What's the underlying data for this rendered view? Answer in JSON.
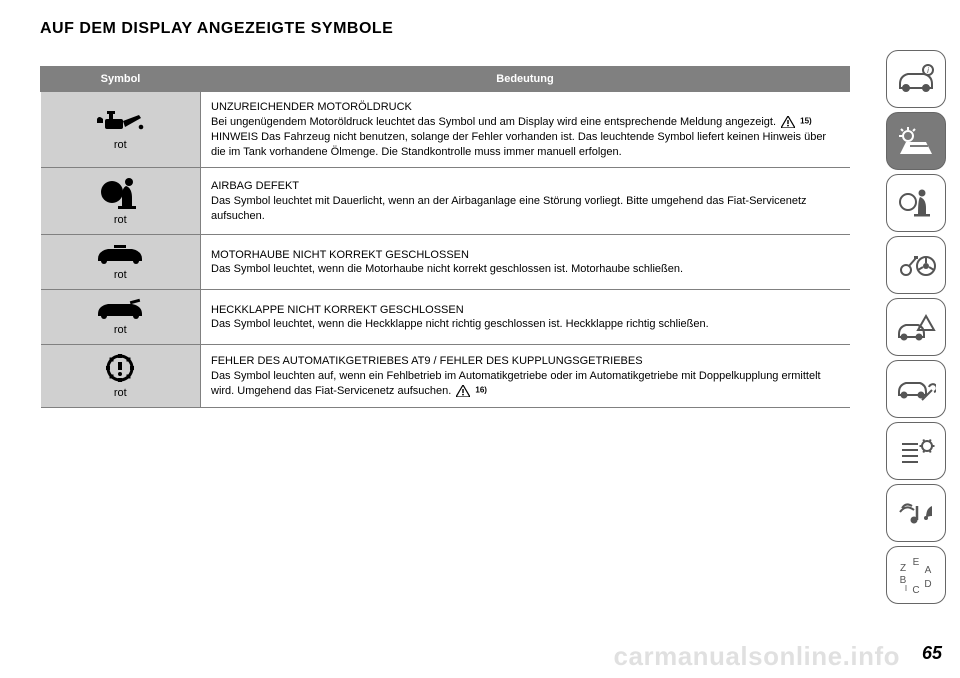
{
  "heading": "AUF DEM DISPLAY ANGEZEIGTE SYMBOLE",
  "table": {
    "header": {
      "col1": "Symbol",
      "col2": "Bedeutung"
    },
    "rows": [
      {
        "icon": "oil-can",
        "color_label": "rot",
        "body_html": "UNZUREICHENDER MOTORÖLDRUCK<br>Bei ungenügendem Motoröldruck leuchtet das Symbol und am Display wird eine entsprechende Meldung angezeigt. {warn} <span class=\"footnote\">15)</span><br>HINWEIS Das Fahrzeug nicht benutzen, solange der Fehler vorhanden ist. Das leuchtende Symbol liefert keinen Hinweis über die im Tank vorhandene Ölmenge. Die Standkontrolle muss immer manuell erfolgen."
      },
      {
        "icon": "airbag",
        "color_label": "rot",
        "body_html": "AIRBAG DEFEKT<br>Das Symbol leuchtet mit Dauerlicht, wenn an der Airbaganlage eine Störung vorliegt. Bitte umgehend das Fiat-Servicenetz aufsuchen."
      },
      {
        "icon": "car-hood",
        "color_label": "rot",
        "body_html": "MOTORHAUBE NICHT KORREKT GESCHLOSSEN<br>Das Symbol leuchtet, wenn die Motorhaube nicht korrekt geschlossen ist. Motorhaube schließen."
      },
      {
        "icon": "car-trunk",
        "color_label": "rot",
        "body_html": "HECKKLAPPE NICHT KORREKT GESCHLOSSEN<br>Das Symbol leuchtet, wenn die Heckklappe nicht richtig geschlossen ist. Heckklappe richtig schließen."
      },
      {
        "icon": "gear-warning",
        "color_label": "rot",
        "body_html": "FEHLER DES AUTOMATIKGETRIEBES AT9 / FEHLER DES KUPPLUNGSGETRIEBES<br>Das Symbol leuchten auf, wenn ein Fehlbetrieb im Automatikgetriebe oder im Automatikgetriebe mit Doppelkupplung ermittelt wird. Umgehend das Fiat-Servicenetz aufsuchen. {warn} <span class=\"footnote\">16)</span>"
      }
    ]
  },
  "side_tabs": [
    {
      "icon": "car-info",
      "active": false
    },
    {
      "icon": "warning-light",
      "active": true
    },
    {
      "icon": "airbag-seat",
      "active": false
    },
    {
      "icon": "key-wheel",
      "active": false
    },
    {
      "icon": "car-triangle",
      "active": false
    },
    {
      "icon": "car-wrench",
      "active": false
    },
    {
      "icon": "list-gear",
      "active": false
    },
    {
      "icon": "media",
      "active": false
    },
    {
      "icon": "alphabet",
      "active": false
    }
  ],
  "page_number": "65",
  "watermark": "carmanualsonline.info",
  "colors": {
    "header_bg": "#808080",
    "header_fg": "#ffffff",
    "symcell_bg": "#d0d0d0",
    "tab_active_bg": "#7a7a7a",
    "tab_border": "#666666",
    "icon_fg": "#000000",
    "tab_icon_fg": "#555555",
    "tab_icon_active_fg": "#ffffff"
  }
}
